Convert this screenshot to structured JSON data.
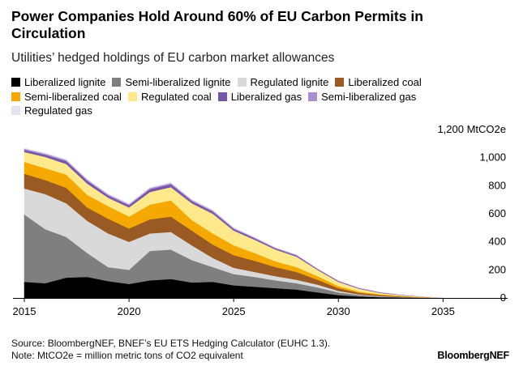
{
  "header": {
    "title": "Power Companies Hold Around 60% of EU Carbon Permits in Circulation",
    "subtitle": "Utilities’ hedged holdings of EU carbon market allowances"
  },
  "footer": {
    "source": "Source: BloombergNEF, BNEF’s EU ETS Hedging Calculator (EUHC 1.3).",
    "note": "Note: MtCO2e = million metric tons of CO2 equivalent",
    "brand": "BloombergNEF"
  },
  "chart_data": {
    "type": "area",
    "stacked": true,
    "x": [
      2015,
      2016,
      2017,
      2018,
      2019,
      2020,
      2021,
      2022,
      2023,
      2024,
      2025,
      2026,
      2027,
      2028,
      2029,
      2030,
      2031,
      2032,
      2033,
      2034,
      2035
    ],
    "xticks": [
      2015,
      2020,
      2025,
      2030,
      2035
    ],
    "xlim": [
      2015,
      2037
    ],
    "ylim": [
      0,
      1200
    ],
    "yticks": [
      0,
      200,
      400,
      600,
      800,
      1000,
      1200
    ],
    "ytick_labels": [
      "0",
      "200",
      "400",
      "600",
      "800",
      "1,000",
      "1,200 MtCO2e"
    ],
    "grid": false,
    "legend_position": "top",
    "series": [
      {
        "name": "Liberalized lignite",
        "color": "#000000",
        "values": [
          115,
          105,
          145,
          150,
          120,
          100,
          125,
          135,
          110,
          115,
          90,
          80,
          70,
          60,
          40,
          20,
          10,
          5,
          3,
          1,
          0
        ]
      },
      {
        "name": "Semi-liberalized lignite",
        "color": "#7f7f7f",
        "values": [
          480,
          385,
          290,
          170,
          100,
          100,
          210,
          210,
          160,
          105,
          80,
          70,
          55,
          45,
          35,
          20,
          10,
          5,
          3,
          1,
          0
        ]
      },
      {
        "name": "Regulated lignite",
        "color": "#d9d9d9",
        "values": [
          185,
          250,
          240,
          230,
          240,
          200,
          125,
          125,
          105,
          65,
          45,
          35,
          30,
          25,
          20,
          10,
          5,
          3,
          1,
          0,
          0
        ]
      },
      {
        "name": "Liberalized coal",
        "color": "#9a5a24",
        "values": [
          105,
          100,
          110,
          95,
          105,
          95,
          100,
          110,
          105,
          95,
          90,
          80,
          65,
          55,
          35,
          20,
          12,
          8,
          4,
          2,
          0
        ]
      },
      {
        "name": "Semi-liberalized coal",
        "color": "#f5a800",
        "values": [
          85,
          85,
          95,
          90,
          90,
          85,
          105,
          115,
          75,
          80,
          70,
          55,
          40,
          35,
          25,
          15,
          8,
          5,
          3,
          1,
          0
        ]
      },
      {
        "name": "Regulated coal",
        "color": "#ffe98a",
        "values": [
          70,
          80,
          75,
          80,
          60,
          65,
          90,
          95,
          120,
          140,
          105,
          95,
          85,
          75,
          45,
          30,
          20,
          10,
          6,
          3,
          0
        ]
      },
      {
        "name": "Liberalized gas",
        "color": "#7656a8",
        "values": [
          15,
          15,
          20,
          20,
          15,
          15,
          20,
          20,
          15,
          15,
          12,
          10,
          8,
          8,
          6,
          5,
          4,
          3,
          2,
          1,
          0
        ]
      },
      {
        "name": "Semi-liberalized gas",
        "color": "#a98fcf",
        "values": [
          8,
          8,
          8,
          8,
          8,
          8,
          8,
          8,
          8,
          8,
          6,
          5,
          4,
          4,
          3,
          3,
          2,
          2,
          1,
          1,
          0
        ]
      },
      {
        "name": "Regulated gas",
        "color": "#e9e0f3",
        "values": [
          5,
          5,
          5,
          5,
          5,
          5,
          5,
          5,
          5,
          5,
          4,
          4,
          3,
          3,
          2,
          2,
          2,
          1,
          1,
          0,
          0
        ]
      }
    ]
  }
}
